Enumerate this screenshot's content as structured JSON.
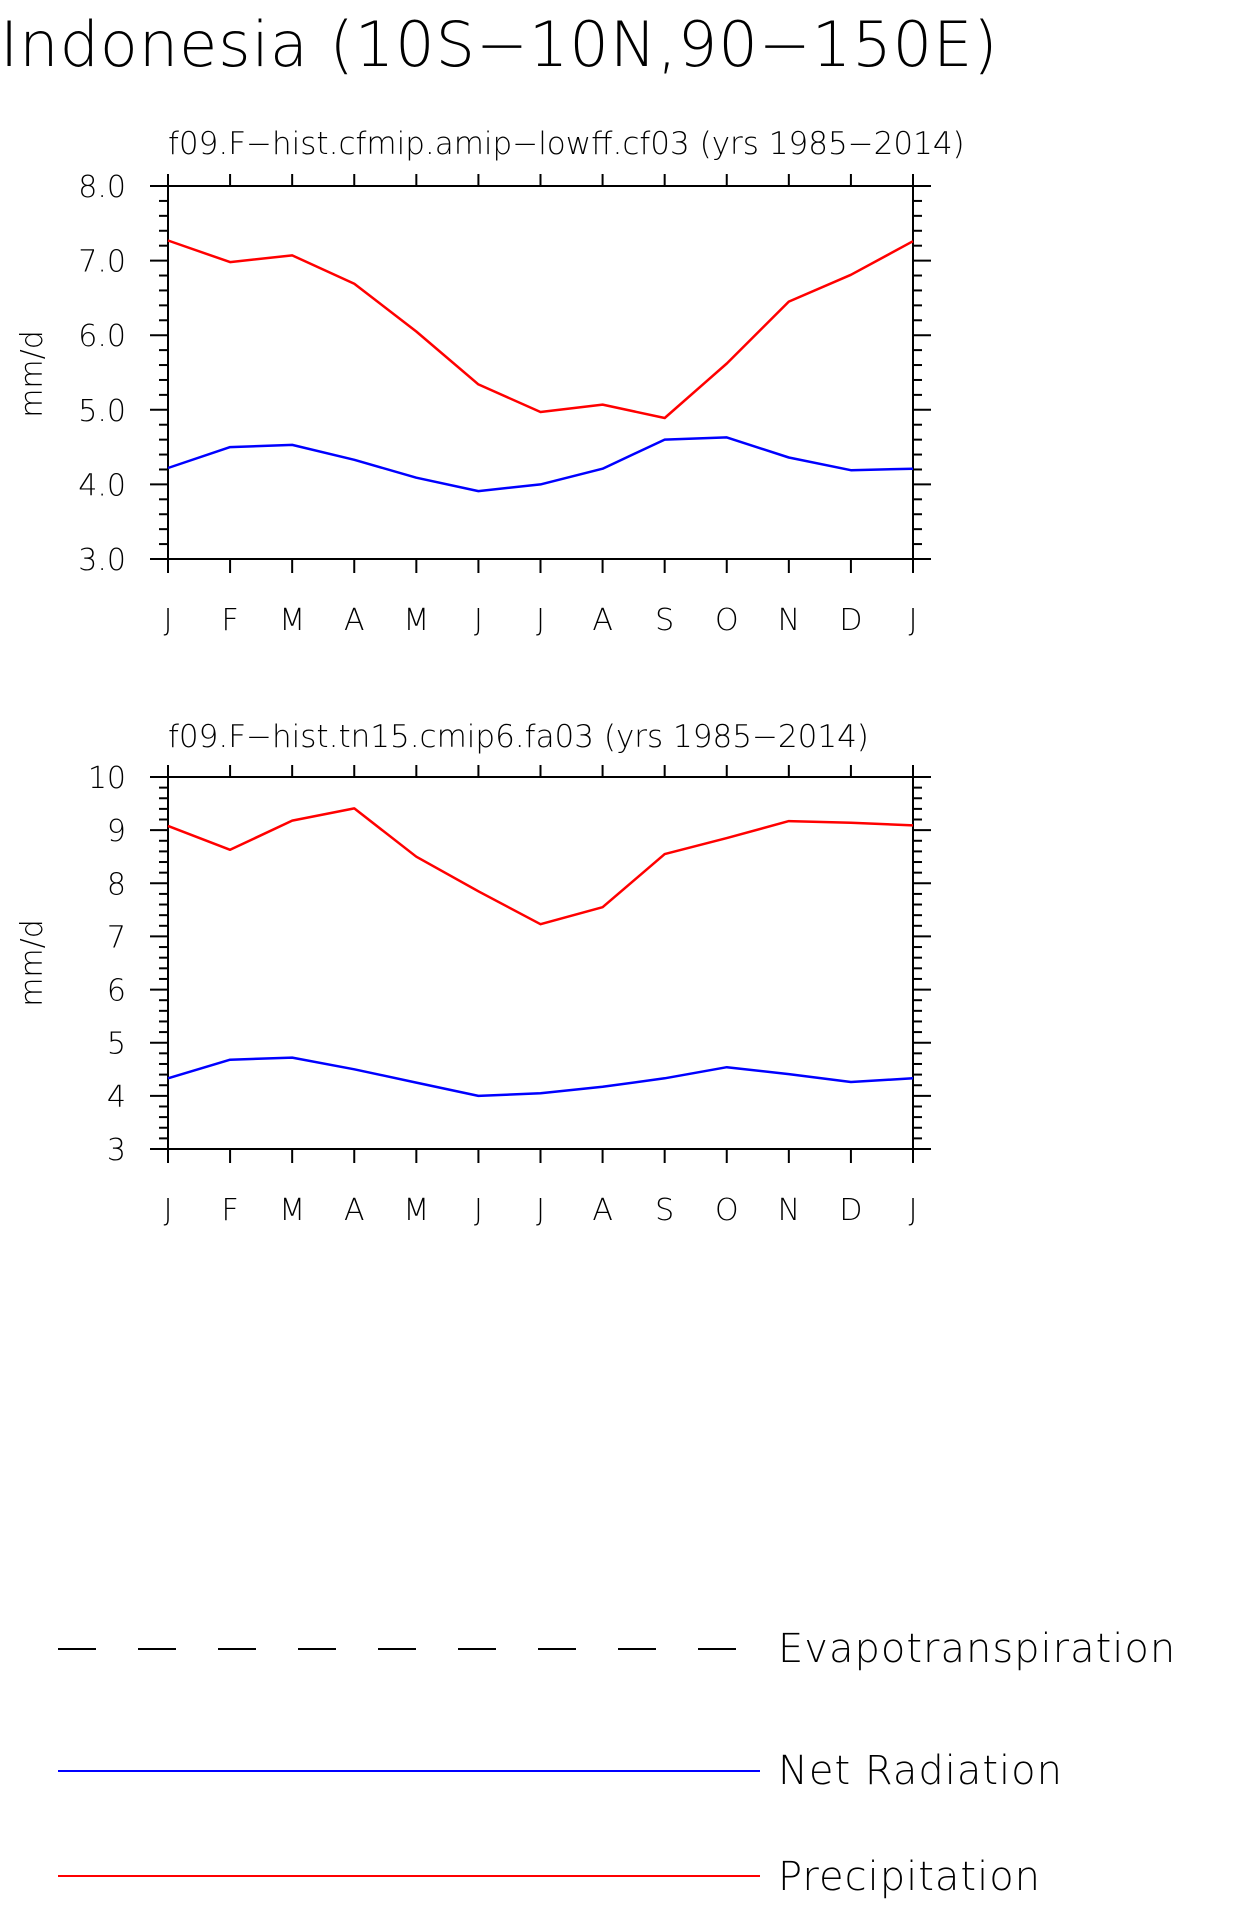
{
  "title": "Indonesia (10S−10N,90−150E)",
  "chart_data": [
    {
      "type": "line",
      "title": "f09.F−hist.cfmip.amip−lowff.cf03 (yrs 1985−2014)",
      "xlabel": "",
      "ylabel": "mm/d",
      "categories": [
        "J",
        "F",
        "M",
        "A",
        "M",
        "J",
        "J",
        "A",
        "S",
        "O",
        "N",
        "D",
        "J"
      ],
      "ylim": [
        3.0,
        8.0
      ],
      "yticks": [
        "3.0",
        "4.0",
        "5.0",
        "6.0",
        "7.0",
        "8.0"
      ],
      "series": [
        {
          "name": "Net Radiation",
          "color": "#0000ff",
          "values": [
            4.22,
            4.5,
            4.53,
            4.33,
            4.09,
            3.91,
            4.0,
            4.21,
            4.6,
            4.63,
            4.36,
            4.19,
            4.21
          ]
        },
        {
          "name": "Precipitation",
          "color": "#ff0000",
          "values": [
            7.27,
            6.98,
            7.07,
            6.69,
            6.05,
            5.34,
            4.97,
            5.07,
            4.89,
            5.62,
            6.45,
            6.81,
            7.26
          ]
        }
      ]
    },
    {
      "type": "line",
      "title": "f09.F−hist.tn15.cmip6.fa03 (yrs 1985−2014)",
      "xlabel": "",
      "ylabel": "mm/d",
      "categories": [
        "J",
        "F",
        "M",
        "A",
        "M",
        "J",
        "J",
        "A",
        "S",
        "O",
        "N",
        "D",
        "J"
      ],
      "ylim": [
        3,
        10
      ],
      "yticks": [
        "3",
        "4",
        "5",
        "6",
        "7",
        "8",
        "9",
        "10"
      ],
      "series": [
        {
          "name": "Net Radiation",
          "color": "#0000ff",
          "values": [
            4.33,
            4.68,
            4.72,
            4.5,
            4.25,
            4.0,
            4.05,
            4.17,
            4.33,
            4.54,
            4.41,
            4.26,
            4.33
          ]
        },
        {
          "name": "Precipitation",
          "color": "#ff0000",
          "values": [
            9.08,
            8.63,
            9.18,
            9.41,
            8.5,
            7.85,
            7.23,
            7.55,
            8.55,
            8.85,
            9.17,
            9.14,
            9.09
          ]
        }
      ]
    }
  ],
  "legend": [
    {
      "label": "Evapotranspiration",
      "color": "#000000",
      "style": "dashed"
    },
    {
      "label": "Net Radiation",
      "color": "#0000ff",
      "style": "solid"
    },
    {
      "label": "Precipitation",
      "color": "#ff0000",
      "style": "solid"
    }
  ]
}
